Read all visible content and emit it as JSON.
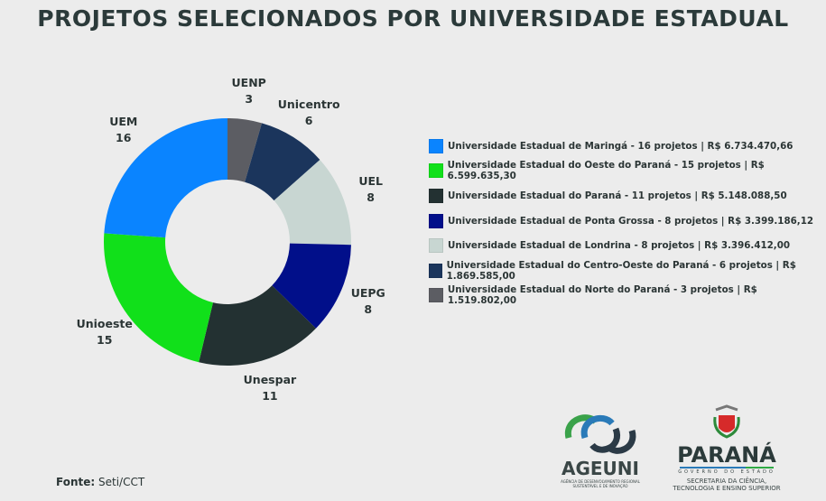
{
  "title": "PROJETOS SELECIONADOS POR UNIVERSIDADE ESTADUAL",
  "chart_data": {
    "type": "donut",
    "title": "PROJETOS SELECIONADOS POR UNIVERSIDADE ESTADUAL",
    "slices": [
      {
        "label": "UENP",
        "value": 3,
        "color": "#5c5d63",
        "legend": "Universidade Estadual do Norte do Paraná - 3 projetos | R$ 1.519.802,00"
      },
      {
        "label": "Unicentro",
        "value": 6,
        "color": "#1b355c",
        "legend": "Universidade Estadual do Centro-Oeste do Paraná - 6 projetos | R$ 1.869.585,00"
      },
      {
        "label": "UEL",
        "value": 8,
        "color": "#c8d6d2",
        "legend": "Universidade Estadual de Londrina - 8 projetos | R$ 3.396.412,00"
      },
      {
        "label": "UEPG",
        "value": 8,
        "color": "#010f8a",
        "legend": "Universidade Estadual de Ponta Grossa - 8 projetos | R$ 3.399.186,12"
      },
      {
        "label": "Unespar",
        "value": 11,
        "color": "#233132",
        "legend": "Universidade Estadual do Paraná - 11 projetos | R$ 5.148.088,50"
      },
      {
        "label": "Unioeste",
        "value": 15,
        "color": "#11e01a",
        "legend": "Universidade Estadual do Oeste do Paraná - 15 projetos | R$ 6.599.635,30"
      },
      {
        "label": "UEM",
        "value": 16,
        "color": "#0a84ff",
        "legend": "Universidade Estadual de Maringá - 16 projetos | R$ 6.734.470,66"
      }
    ],
    "legend_order": [
      "UEM",
      "Unioeste",
      "Unespar",
      "UEPG",
      "UEL",
      "Unicentro",
      "UENP"
    ],
    "legend_position": "right"
  },
  "footer": {
    "source_label": "Fonte:",
    "source_value": "Seti/CCT"
  },
  "logos": {
    "ageuni": {
      "name": "AGEUNI",
      "subtitle": "AGÊNCIA DE DESENVOLVIMENTO REGIONAL SUSTENTÁVEL E DE INOVAÇÃO"
    },
    "parana": {
      "name": "PARANÁ",
      "tagline": "GOVERNO DO ESTADO",
      "line1": "SECRETARIA DA CIÊNCIA,",
      "line2": "TECNOLOGIA E ENSINO SUPERIOR"
    }
  }
}
